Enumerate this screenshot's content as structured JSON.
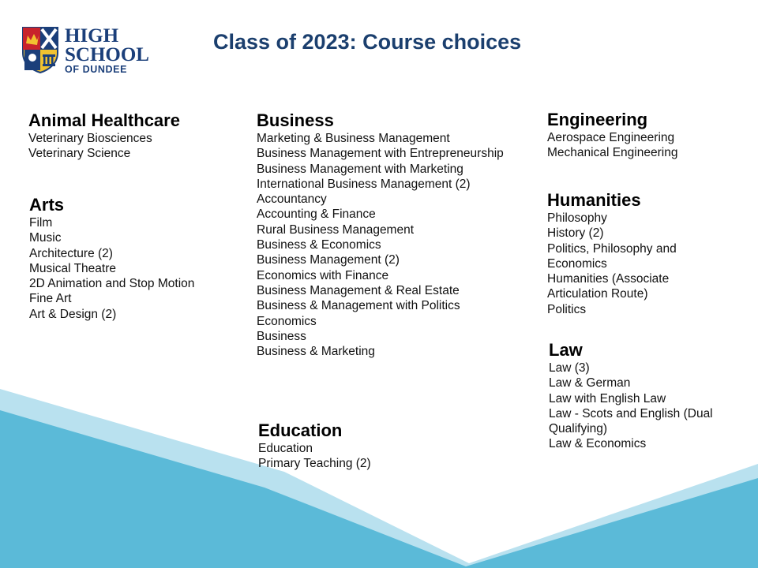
{
  "logo": {
    "line1": "HIGH",
    "line2": "SCHOOL",
    "line3": "OF DUNDEE",
    "crest_icon": "school-crest-icon"
  },
  "title": "Class of 2023: Course choices",
  "colors": {
    "title": "#1b3f6e",
    "logo_text": "#1b3f7a",
    "wave_light": "#b9e1ef",
    "wave_dark": "#5bbad8"
  },
  "categories": {
    "animal_healthcare": {
      "heading": "Animal Healthcare",
      "items": [
        "Veterinary Biosciences",
        "Veterinary Science"
      ]
    },
    "arts": {
      "heading": "Arts",
      "items": [
        "Film",
        "Music",
        "Architecture (2)",
        "Musical Theatre",
        "2D Animation and Stop Motion",
        "Fine Art",
        "Art & Design (2)"
      ]
    },
    "business": {
      "heading": "Business",
      "items": [
        "Marketing & Business Management",
        "Business Management with Entrepreneurship",
        "Business Management with Marketing",
        "International Business Management (2)",
        "Accountancy",
        "Accounting & Finance",
        "Rural Business Management",
        "Business & Economics",
        "Business Management (2)",
        "Economics with Finance",
        "Business Management & Real Estate",
        "Business & Management with Politics",
        "Economics",
        "Business",
        "Business & Marketing"
      ]
    },
    "education": {
      "heading": "Education",
      "items": [
        "Education",
        "Primary Teaching (2)"
      ]
    },
    "engineering": {
      "heading": "Engineering",
      "items": [
        "Aerospace Engineering",
        "Mechanical Engineering"
      ]
    },
    "humanities": {
      "heading": "Humanities",
      "items": [
        "Philosophy",
        "History (2)",
        "Politics, Philosophy and Economics",
        "Humanities (Associate Articulation Route)",
        "Politics"
      ]
    },
    "law": {
      "heading": "Law",
      "items": [
        "Law (3)",
        "Law & German",
        "Law with English Law",
        "Law - Scots and English (Dual Qualifying)",
        "Law & Economics"
      ]
    }
  }
}
